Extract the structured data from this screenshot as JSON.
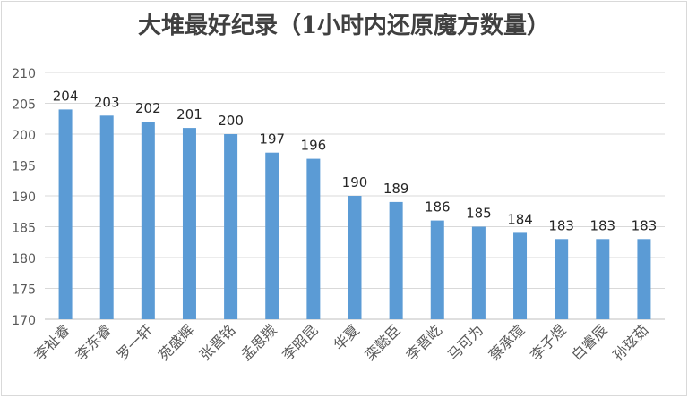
{
  "chart_data": {
    "type": "bar",
    "title": "大堆最好纪录（1小时内还原魔方数量）",
    "xlabel": "",
    "ylabel": "",
    "ylim": [
      170,
      210
    ],
    "ytick_step": 5,
    "grid": true,
    "legend": "none",
    "bar_color": "#5b9bd5",
    "categories": [
      "李祉睿",
      "李东睿",
      "罗一轩",
      "苑盛辉",
      "张晋铭",
      "孟思羰",
      "李昭昆",
      "华夏",
      "栾懿臣",
      "李晋屹",
      "马可为",
      "蔡承瑄",
      "李子煜",
      "白睿辰",
      "孙玹茹"
    ],
    "values": [
      204,
      203,
      202,
      201,
      200,
      197,
      196,
      190,
      189,
      186,
      185,
      184,
      183,
      183,
      183
    ]
  }
}
